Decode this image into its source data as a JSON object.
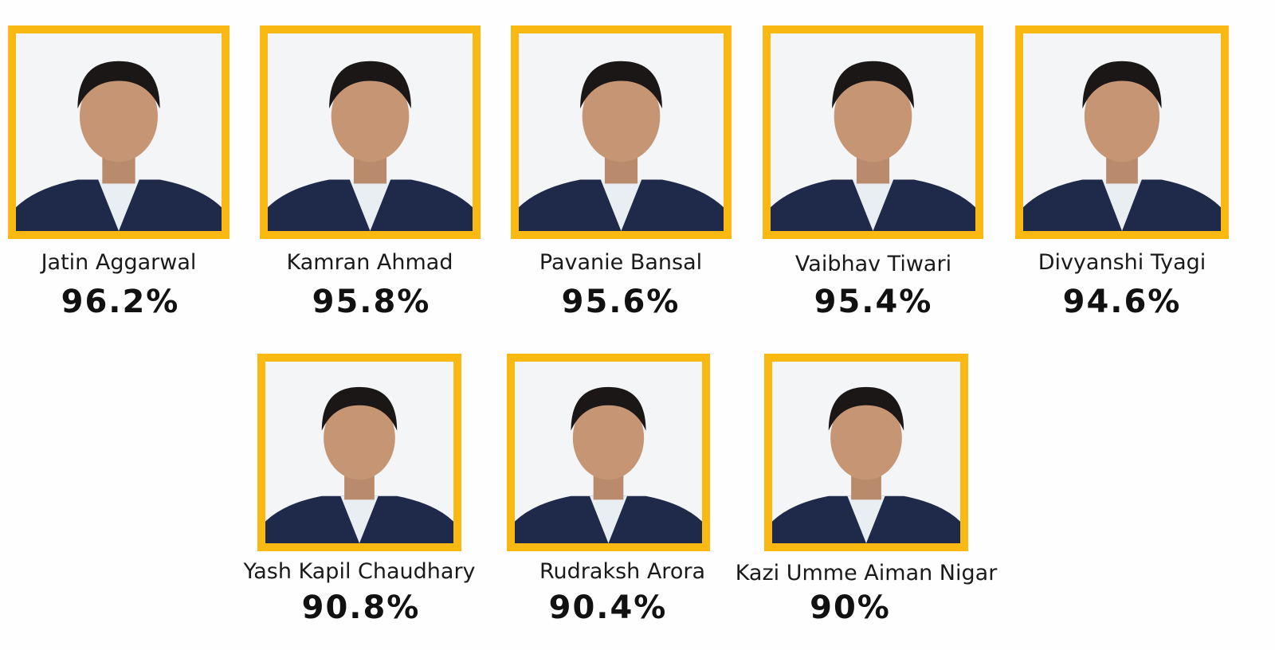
{
  "students": [
    {
      "name": "Jatin Aggarwal",
      "score": "96.2%"
    },
    {
      "name": "Kamran Ahmad",
      "score": "95.8%"
    },
    {
      "name": "Pavanie Bansal",
      "score": "95.6%"
    },
    {
      "name": "Vaibhav Tiwari",
      "score": "95.4%"
    },
    {
      "name": "Divyanshi Tyagi",
      "score": "94.6%"
    },
    {
      "name": "Yash Kapil Chaudhary",
      "score": "90.8%"
    },
    {
      "name": "Rudraksh Arora",
      "score": "90.4%"
    },
    {
      "name": "Kazi Umme Aiman Nigar",
      "score": "90%"
    }
  ]
}
